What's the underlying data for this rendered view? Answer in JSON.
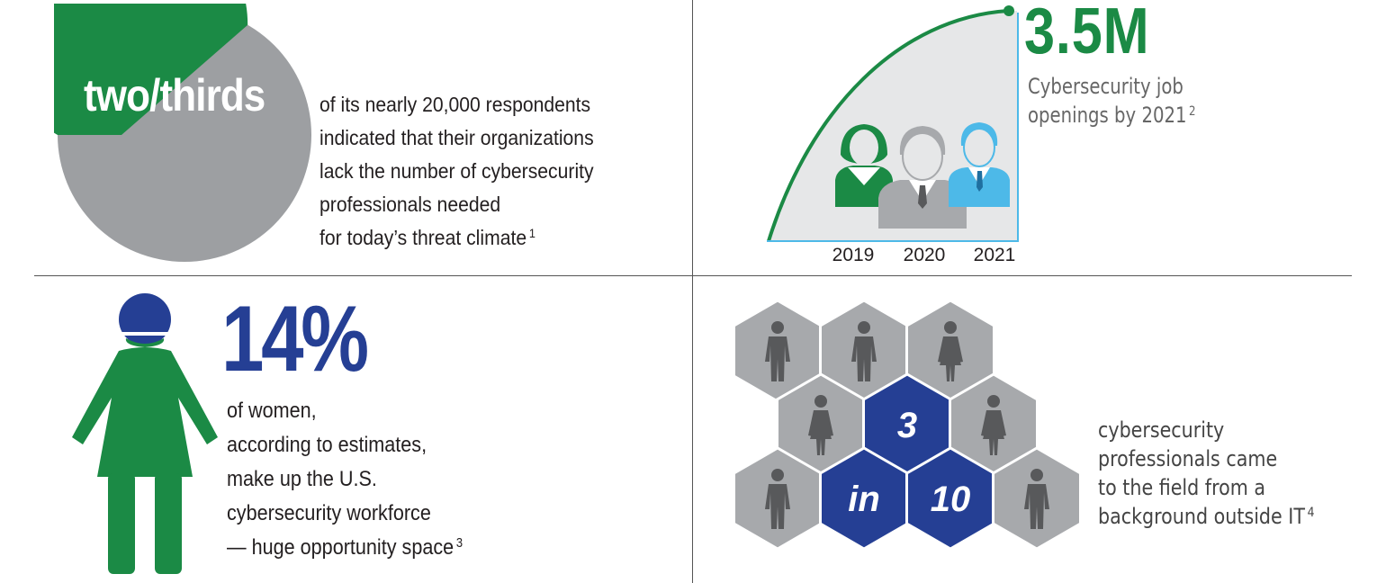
{
  "colors": {
    "green": "#1b8a45",
    "gray": "#9d9fa2",
    "navy": "#253f94",
    "light_blue": "#4db9e8",
    "area_fill": "#e6e7e8",
    "hex_gray": "#a7a9ac",
    "person_dark": "#58595b"
  },
  "two_thirds": {
    "headline": "two/thirds",
    "caption_lines": [
      "of its nearly 20,000 respondents",
      "indicated that their organizations",
      "lack the number of cybersecurity",
      "professionals needed",
      "for today’s threat climate"
    ],
    "footnote": "1",
    "pie_fraction": 0.667
  },
  "job_openings": {
    "stat": "3.5M",
    "caption_lines": [
      "Cybersecurity job",
      "openings by 2021"
    ],
    "footnote": "2",
    "years": [
      "2019",
      "2020",
      "2021"
    ],
    "icons": [
      "woman-icon",
      "man-icon",
      "man-icon"
    ]
  },
  "women": {
    "stat": "14%",
    "caption_lines": [
      "of women,",
      "according to estimates,",
      "make up the U.S.",
      "cybersecurity workforce",
      "— huge opportunity space"
    ],
    "footnote": "3",
    "icon": "woman-icon"
  },
  "background": {
    "hex_labels": [
      "3",
      "in",
      "10"
    ],
    "caption_lines": [
      "cybersecurity",
      "professionals came",
      "to the field from a",
      "background outside IT"
    ],
    "footnote": "4"
  }
}
